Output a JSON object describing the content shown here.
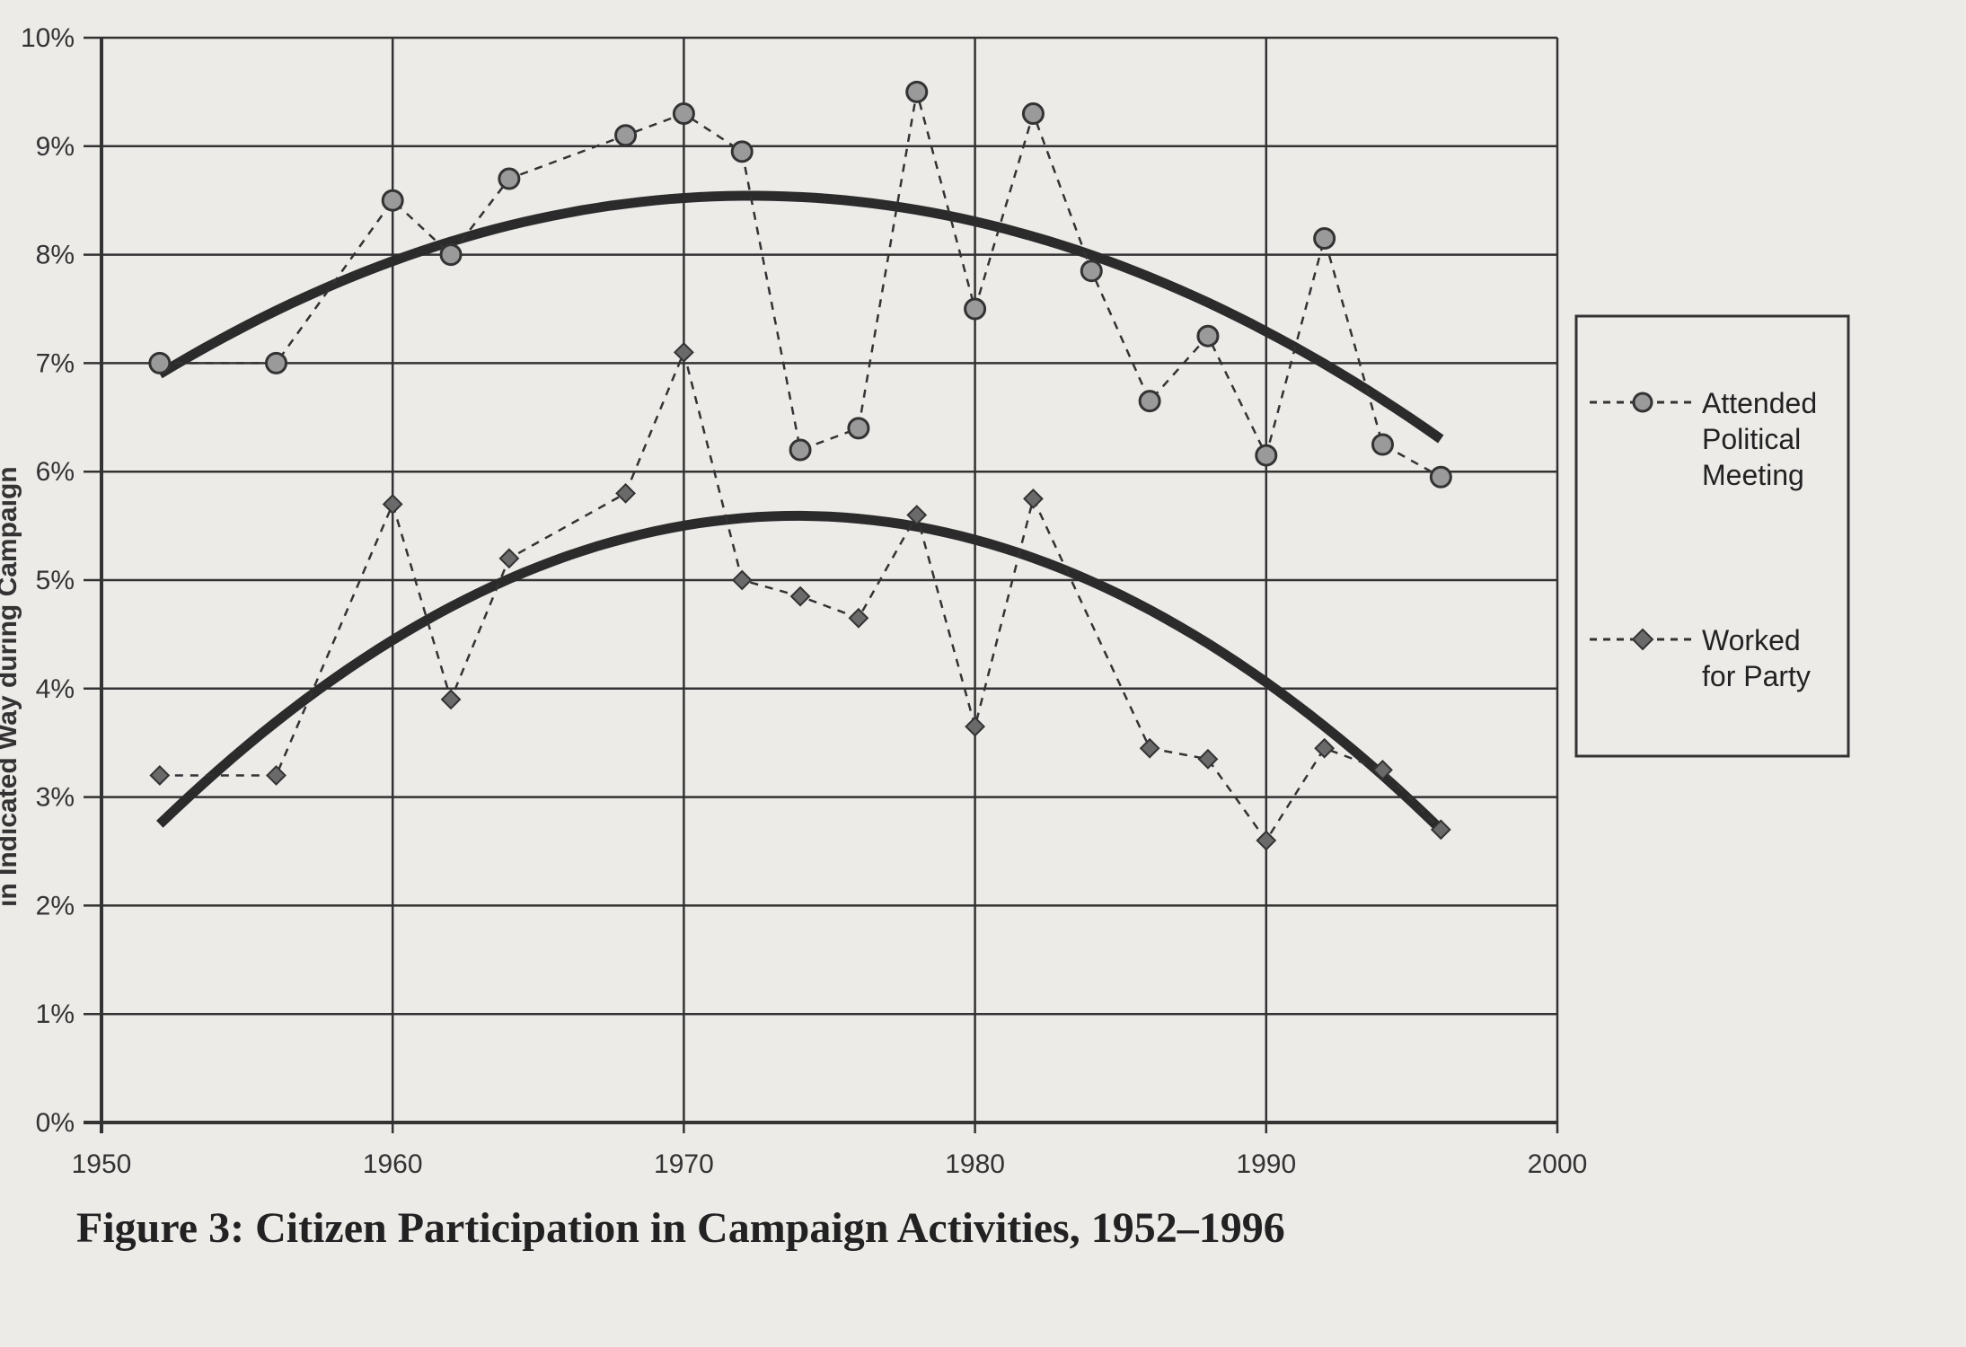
{
  "chart_data": {
    "type": "line",
    "title": "Figure 3: Citizen Participation in Campaign Activities, 1952–1996",
    "ylabel": "in Indicated Way during Campaign",
    "xlabel": "",
    "xlim": [
      1950,
      2000
    ],
    "ylim": [
      0,
      10
    ],
    "x_ticks": [
      "1950",
      "1960",
      "1970",
      "1980",
      "1990",
      "2000"
    ],
    "y_ticks": [
      "0%",
      "1%",
      "2%",
      "3%",
      "4%",
      "5%",
      "6%",
      "7%",
      "8%",
      "9%",
      "10%"
    ],
    "grid": true,
    "legend_position": "right",
    "series": [
      {
        "name": "Attended Political Meeting",
        "legend_lines": [
          "Attended",
          "Political",
          "Meeting"
        ],
        "marker": "circle",
        "x": [
          1952,
          1956,
          1960,
          1962,
          1964,
          1968,
          1970,
          1972,
          1974,
          1976,
          1978,
          1980,
          1982,
          1984,
          1986,
          1988,
          1990,
          1992,
          1994,
          1996
        ],
        "values": [
          7.0,
          7.0,
          8.5,
          8.0,
          8.7,
          9.1,
          9.3,
          8.95,
          6.2,
          6.4,
          9.5,
          7.5,
          9.3,
          7.85,
          6.65,
          7.25,
          6.15,
          8.15,
          6.25,
          5.95
        ],
        "trend": {
          "x": [
            1952,
            1969,
            1996
          ],
          "values": [
            6.9,
            8.5,
            6.3
          ]
        }
      },
      {
        "name": "Worked for Party",
        "legend_lines": [
          "Worked",
          "for Party"
        ],
        "marker": "diamond",
        "x": [
          1952,
          1956,
          1960,
          1962,
          1964,
          1968,
          1970,
          1972,
          1974,
          1976,
          1978,
          1980,
          1982,
          1986,
          1988,
          1990,
          1992,
          1994,
          1996
        ],
        "values": [
          3.2,
          3.2,
          5.7,
          3.9,
          5.2,
          5.8,
          7.1,
          5.0,
          4.85,
          4.65,
          5.6,
          3.65,
          5.75,
          3.45,
          3.35,
          2.6,
          3.45,
          3.25,
          2.7
        ],
        "trend": {
          "x": [
            1952,
            1969,
            1996
          ],
          "values": [
            2.75,
            5.45,
            2.7
          ]
        }
      }
    ]
  },
  "colors": {
    "grid": "#333333",
    "trend": "#2b2b2b",
    "marker_fill": "#9a9a9a",
    "diamond_fill": "#6a6a6a"
  }
}
